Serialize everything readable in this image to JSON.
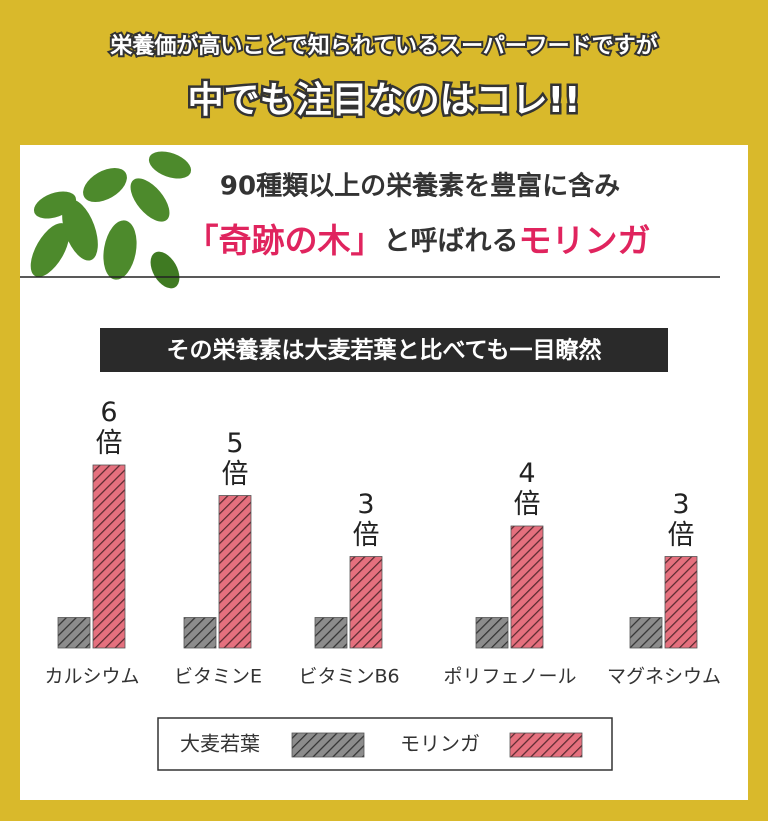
{
  "header": {
    "line1": "栄養価が高いことで知られているスーパーフードですが",
    "line2": "中でも注目なのはコレ!!"
  },
  "panel": {
    "headline1": "90種類以上の栄養素を豊富に含み",
    "headline2": [
      "「奇跡の木」",
      "と呼ばれる",
      "モリンガ"
    ],
    "banner": "その栄養素は大麦若葉と比べても一目瞭然"
  },
  "chart_data": {
    "type": "bar",
    "categories": [
      "カルシウム",
      "ビタミンE",
      "ビタミンB6",
      "ポリフェノール",
      "マグネシウム"
    ],
    "series": [
      {
        "name": "大麦若葉",
        "color": "#8c8c8c",
        "values": [
          1,
          1,
          1,
          1,
          1
        ]
      },
      {
        "name": "モリンガ",
        "color": "#e5707e",
        "values": [
          6,
          5,
          3,
          4,
          3
        ],
        "value_labels": [
          "6倍",
          "5倍",
          "3倍",
          "4倍",
          "3倍"
        ]
      }
    ]
  }
}
